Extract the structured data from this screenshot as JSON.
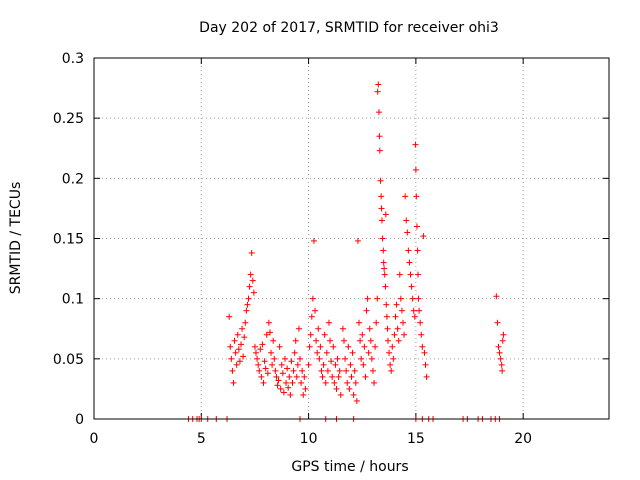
{
  "chart_data": {
    "type": "scatter",
    "title": "Day 202 of 2017, SRMTID for receiver ohi3",
    "xlabel": "GPS time / hours",
    "ylabel": "SRMTID / TECUs",
    "xlim": [
      0,
      24
    ],
    "ylim": [
      0,
      0.3
    ],
    "xticks": [
      0,
      5,
      10,
      15,
      20
    ],
    "yticks": [
      0,
      0.05,
      0.1,
      0.15,
      0.2,
      0.25,
      0.3
    ],
    "ytick_labels": [
      "0",
      "0.05",
      "0.1",
      "0.15",
      "0.2",
      "0.25",
      "0.3"
    ],
    "grid": true,
    "marker": "+",
    "color": "#ff0000",
    "series": [
      {
        "name": "SRMTID",
        "points": [
          [
            4.4,
            0
          ],
          [
            4.6,
            0
          ],
          [
            4.8,
            0
          ],
          [
            4.9,
            0
          ],
          [
            5.0,
            0
          ],
          [
            5.3,
            0
          ],
          [
            5.7,
            0
          ],
          [
            6.2,
            0
          ],
          [
            6.3,
            0.085
          ],
          [
            6.35,
            0.06
          ],
          [
            6.4,
            0.05
          ],
          [
            6.45,
            0.04
          ],
          [
            6.5,
            0.03
          ],
          [
            6.55,
            0.065
          ],
          [
            6.6,
            0.055
          ],
          [
            6.65,
            0.045
          ],
          [
            6.7,
            0.07
          ],
          [
            6.75,
            0.058
          ],
          [
            6.8,
            0.048
          ],
          [
            6.85,
            0.062
          ],
          [
            6.9,
            0.075
          ],
          [
            6.95,
            0.052
          ],
          [
            7.0,
            0.068
          ],
          [
            7.05,
            0.08
          ],
          [
            7.1,
            0.09
          ],
          [
            7.15,
            0.095
          ],
          [
            7.2,
            0.1
          ],
          [
            7.25,
            0.11
          ],
          [
            7.3,
            0.12
          ],
          [
            7.35,
            0.138
          ],
          [
            7.4,
            0.115
          ],
          [
            7.45,
            0.105
          ],
          [
            7.5,
            0.06
          ],
          [
            7.55,
            0.055
          ],
          [
            7.6,
            0.05
          ],
          [
            7.65,
            0.045
          ],
          [
            7.7,
            0.04
          ],
          [
            7.75,
            0.058
          ],
          [
            7.8,
            0.035
          ],
          [
            7.85,
            0.062
          ],
          [
            7.9,
            0.03
          ],
          [
            7.95,
            0.048
          ],
          [
            8.0,
            0.042
          ],
          [
            8.05,
            0.07
          ],
          [
            8.1,
            0.038
          ],
          [
            8.15,
            0.08
          ],
          [
            8.2,
            0.072
          ],
          [
            8.25,
            0.055
          ],
          [
            8.3,
            0.045
          ],
          [
            8.35,
            0.065
          ],
          [
            8.4,
            0.05
          ],
          [
            8.45,
            0.04
          ],
          [
            8.5,
            0.035
          ],
          [
            8.55,
            0.028
          ],
          [
            8.6,
            0.032
          ],
          [
            8.65,
            0.06
          ],
          [
            8.7,
            0.025
          ],
          [
            8.75,
            0.045
          ],
          [
            8.8,
            0.038
          ],
          [
            8.85,
            0.022
          ],
          [
            8.9,
            0.05
          ],
          [
            8.95,
            0.03
          ],
          [
            9.0,
            0.042
          ],
          [
            9.05,
            0.026
          ],
          [
            9.1,
            0.035
          ],
          [
            9.15,
            0.02
          ],
          [
            9.2,
            0.048
          ],
          [
            9.25,
            0.03
          ],
          [
            9.3,
            0.04
          ],
          [
            9.35,
            0.055
          ],
          [
            9.4,
            0.065
          ],
          [
            9.45,
            0.035
          ],
          [
            9.5,
            0.045
          ],
          [
            9.55,
            0.075
          ],
          [
            9.6,
            0.05
          ],
          [
            9.65,
            0.03
          ],
          [
            9.7,
            0.04
          ],
          [
            9.75,
            0.02
          ],
          [
            9.8,
            0.035
          ],
          [
            9.85,
            0.025
          ],
          [
            9.6,
            0
          ],
          [
            10.0,
            0.045
          ],
          [
            10.05,
            0.06
          ],
          [
            10.1,
            0.07
          ],
          [
            10.15,
            0.085
          ],
          [
            10.2,
            0.1
          ],
          [
            10.25,
            0.148
          ],
          [
            10.3,
            0.09
          ],
          [
            10.35,
            0.065
          ],
          [
            10.4,
            0.055
          ],
          [
            10.45,
            0.075
          ],
          [
            10.5,
            0.05
          ],
          [
            10.55,
            0.06
          ],
          [
            10.6,
            0.04
          ],
          [
            10.65,
            0.035
          ],
          [
            10.7,
            0.045
          ],
          [
            10.75,
            0.07
          ],
          [
            10.8,
            0.03
          ],
          [
            10.85,
            0.055
          ],
          [
            10.9,
            0.04
          ],
          [
            10.95,
            0.08
          ],
          [
            11.0,
            0.065
          ],
          [
            11.05,
            0.048
          ],
          [
            11.1,
            0.035
          ],
          [
            11.15,
            0.06
          ],
          [
            11.2,
            0.03
          ],
          [
            11.25,
            0.045
          ],
          [
            11.3,
            0.025
          ],
          [
            11.35,
            0.05
          ],
          [
            11.4,
            0.035
          ],
          [
            11.45,
            0.04
          ],
          [
            11.5,
            0.02
          ],
          [
            10.8,
            0
          ],
          [
            11.3,
            0
          ],
          [
            11.6,
            0.075
          ],
          [
            11.65,
            0.065
          ],
          [
            11.7,
            0.05
          ],
          [
            11.75,
            0.04
          ],
          [
            11.8,
            0.03
          ],
          [
            11.85,
            0.06
          ],
          [
            11.9,
            0.025
          ],
          [
            11.95,
            0.045
          ],
          [
            12.0,
            0.035
          ],
          [
            12.05,
            0.055
          ],
          [
            12.1,
            0.02
          ],
          [
            12.15,
            0.04
          ],
          [
            12.2,
            0.03
          ],
          [
            12.25,
            0.015
          ],
          [
            12.3,
            0.148
          ],
          [
            12.35,
            0.08
          ],
          [
            12.4,
            0.065
          ],
          [
            12.45,
            0.05
          ],
          [
            12.5,
            0.07
          ],
          [
            12.55,
            0.045
          ],
          [
            12.6,
            0.06
          ],
          [
            12.65,
            0.035
          ],
          [
            12.1,
            0
          ],
          [
            12.7,
            0.09
          ],
          [
            12.75,
            0.1
          ],
          [
            12.8,
            0.055
          ],
          [
            12.85,
            0.075
          ],
          [
            12.9,
            0.065
          ],
          [
            12.95,
            0.05
          ],
          [
            13.0,
            0.04
          ],
          [
            13.05,
            0.03
          ],
          [
            13.1,
            0.06
          ],
          [
            13.15,
            0.08
          ],
          [
            13.2,
            0.1
          ],
          [
            13.22,
            0.272
          ],
          [
            13.25,
            0.278
          ],
          [
            13.28,
            0.255
          ],
          [
            13.3,
            0.235
          ],
          [
            13.32,
            0.223
          ],
          [
            13.35,
            0.198
          ],
          [
            13.38,
            0.185
          ],
          [
            13.4,
            0.175
          ],
          [
            13.42,
            0.165
          ],
          [
            13.45,
            0.15
          ],
          [
            13.48,
            0.14
          ],
          [
            13.5,
            0.13
          ],
          [
            13.52,
            0.125
          ],
          [
            13.55,
            0.12
          ],
          [
            13.58,
            0.11
          ],
          [
            13.6,
            0.17
          ],
          [
            13.62,
            0.095
          ],
          [
            13.65,
            0.085
          ],
          [
            13.68,
            0.075
          ],
          [
            13.7,
            0.065
          ],
          [
            13.75,
            0.055
          ],
          [
            13.8,
            0.045
          ],
          [
            13.85,
            0.04
          ],
          [
            13.9,
            0.06
          ],
          [
            13.95,
            0.05
          ],
          [
            14.0,
            0.07
          ],
          [
            14.05,
            0.085
          ],
          [
            14.1,
            0.095
          ],
          [
            14.15,
            0.075
          ],
          [
            14.2,
            0.065
          ],
          [
            14.25,
            0.12
          ],
          [
            14.3,
            0.1
          ],
          [
            14.35,
            0.09
          ],
          [
            14.4,
            0.08
          ],
          [
            14.45,
            0.07
          ],
          [
            14.5,
            0.185
          ],
          [
            14.55,
            0.165
          ],
          [
            14.6,
            0.155
          ],
          [
            14.65,
            0.14
          ],
          [
            14.7,
            0.13
          ],
          [
            14.75,
            0.12
          ],
          [
            14.8,
            0.11
          ],
          [
            14.85,
            0.1
          ],
          [
            14.9,
            0.09
          ],
          [
            14.95,
            0.085
          ],
          [
            14.98,
            0.228
          ],
          [
            15.0,
            0.207
          ],
          [
            15.02,
            0.185
          ],
          [
            15.05,
            0.16
          ],
          [
            15.08,
            0.14
          ],
          [
            15.1,
            0.12
          ],
          [
            15.12,
            0.1
          ],
          [
            15.15,
            0.09
          ],
          [
            15.2,
            0.08
          ],
          [
            15.25,
            0.07
          ],
          [
            15.3,
            0.06
          ],
          [
            15.35,
            0.152
          ],
          [
            15.4,
            0.055
          ],
          [
            15.45,
            0.045
          ],
          [
            15.5,
            0.035
          ],
          [
            15.0,
            0
          ],
          [
            15.3,
            0
          ],
          [
            15.6,
            0
          ],
          [
            15.8,
            0
          ],
          [
            17.2,
            0
          ],
          [
            17.4,
            0
          ],
          [
            17.9,
            0
          ],
          [
            18.1,
            0
          ],
          [
            18.5,
            0
          ],
          [
            18.7,
            0
          ],
          [
            18.9,
            0
          ],
          [
            18.75,
            0.102
          ],
          [
            18.8,
            0.08
          ],
          [
            18.85,
            0.06
          ],
          [
            18.9,
            0.055
          ],
          [
            18.95,
            0.05
          ],
          [
            19.0,
            0.045
          ],
          [
            19.02,
            0.04
          ],
          [
            19.05,
            0.065
          ],
          [
            19.08,
            0.07
          ]
        ]
      }
    ]
  }
}
